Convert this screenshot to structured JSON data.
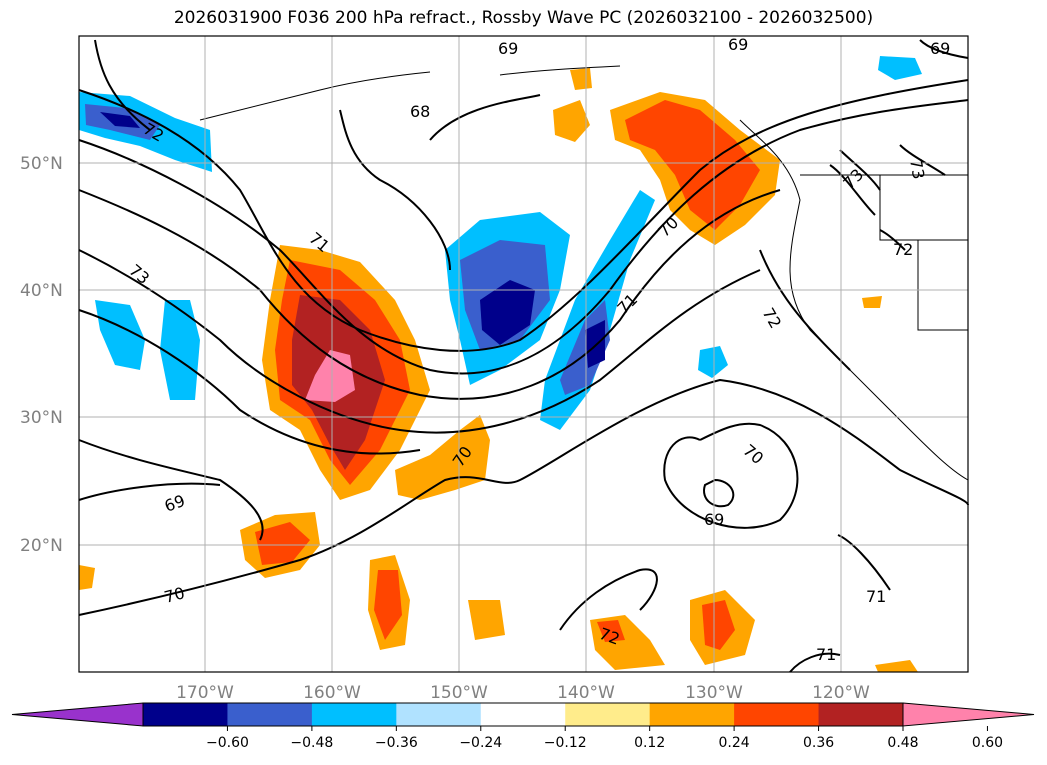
{
  "title": "2026031900 F036 200 hPa refract., Rossby Wave PC (2026032100 - 2026032500)",
  "lat_labels": [
    "50°N",
    "40°N",
    "30°N",
    "20°N"
  ],
  "lon_labels": [
    "170°W",
    "160°W",
    "150°W",
    "140°W",
    "130°W",
    "120°W"
  ],
  "contour_labels": [
    "72",
    "73",
    "71",
    "69",
    "68",
    "69",
    "69",
    "70",
    "71",
    "72",
    "73",
    "73",
    "72",
    "70",
    "70",
    "69",
    "69",
    "70",
    "71",
    "72",
    "71"
  ],
  "colorbar": {
    "ticks": [
      "−0.60",
      "−0.48",
      "−0.36",
      "−0.24",
      "−0.12",
      "0.12",
      "0.24",
      "0.36",
      "0.48",
      "0.60"
    ],
    "colors": [
      "#9932cc",
      "#00008b",
      "#3a5fcd",
      "#00bfff",
      "#b0e2ff",
      "#ffffff",
      "#ffec8b",
      "#ffa500",
      "#ff4500",
      "#b22222",
      "#ff82ab"
    ]
  },
  "colors": {
    "gridline": "#b0b0b0",
    "coastline": "#000000",
    "contour": "#000000"
  }
}
